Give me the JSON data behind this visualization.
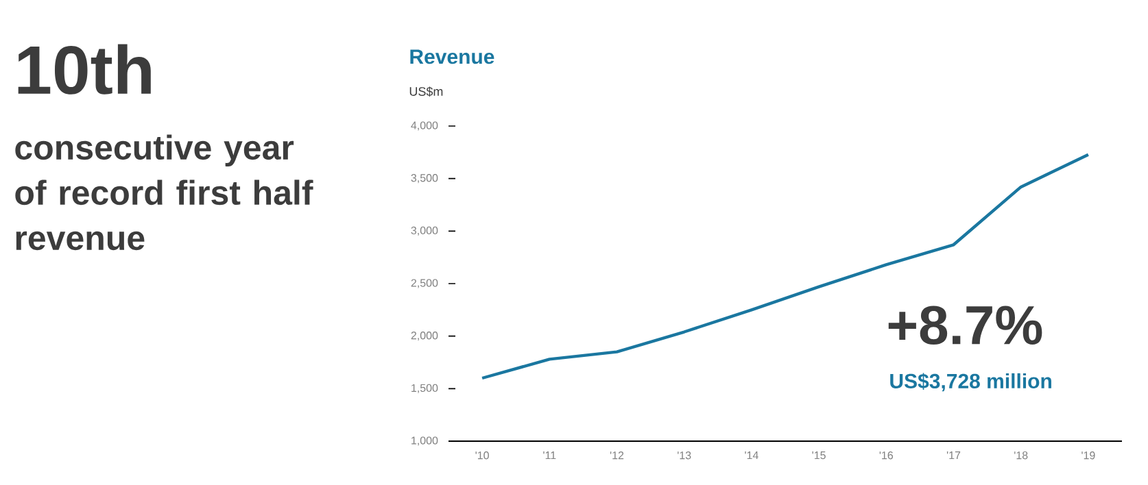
{
  "chart_data": {
    "type": "line",
    "title": "Revenue",
    "ylabel": "US$m",
    "categories": [
      "'10",
      "'11",
      "'12",
      "'13",
      "'14",
      "'15",
      "'16",
      "'17",
      "'18",
      "'19"
    ],
    "series": [
      {
        "color": "#1a77a0",
        "values": [
          1600,
          1780,
          1850,
          2040,
          2250,
          2470,
          2680,
          2870,
          3420,
          3728
        ]
      }
    ],
    "ylim": [
      1000,
      4000
    ],
    "yticks": [
      {
        "value": 1000,
        "label": "1,000"
      },
      {
        "value": 1500,
        "label": "1,500"
      },
      {
        "value": 2000,
        "label": "2,000"
      },
      {
        "value": 2500,
        "label": "2,500"
      },
      {
        "value": 3000,
        "label": "3,000"
      },
      {
        "value": 3500,
        "label": "3,500"
      },
      {
        "value": 4000,
        "label": "4,000"
      }
    ],
    "grid": false,
    "annotations": [
      "10th",
      "consecutive year of record first half revenue",
      "+8.7%",
      "US$3,728 million"
    ]
  }
}
